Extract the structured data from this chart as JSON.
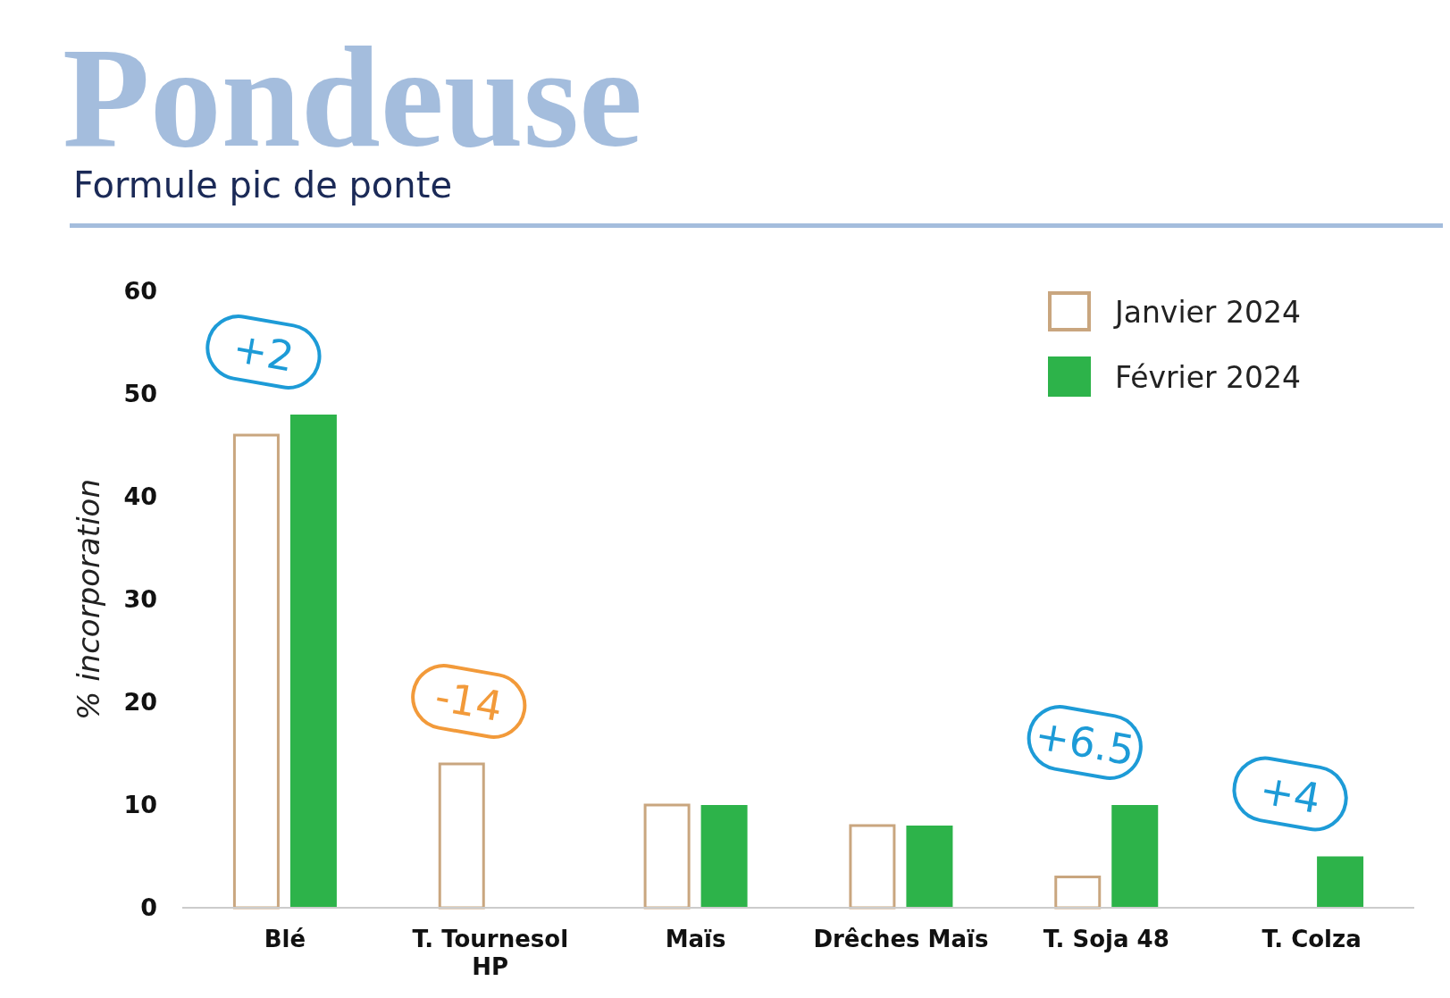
{
  "chart_data": {
    "type": "bar",
    "title": "Pondeuse",
    "subtitle": "Formule pic de ponte",
    "ylabel": "% incorporation",
    "categories": [
      "Blé",
      "T. Tournesol HP",
      "Maïs",
      "Drêches Maïs",
      "T. Soja 48",
      "T. Colza"
    ],
    "series": [
      {
        "name": "Janvier 2024",
        "color": "#c9a67f",
        "values": [
          46,
          14,
          10,
          8,
          3,
          null
        ]
      },
      {
        "name": "Février 2024",
        "color": "#2db34a",
        "values": [
          48,
          null,
          10,
          8,
          10,
          5
        ]
      }
    ],
    "ylim": [
      0,
      60
    ],
    "yticks": [
      0,
      10,
      20,
      30,
      40,
      50,
      60
    ],
    "grid": false,
    "legend": "top right",
    "annotations": [
      "+2",
      "-14",
      "+6.5",
      "+4"
    ]
  }
}
